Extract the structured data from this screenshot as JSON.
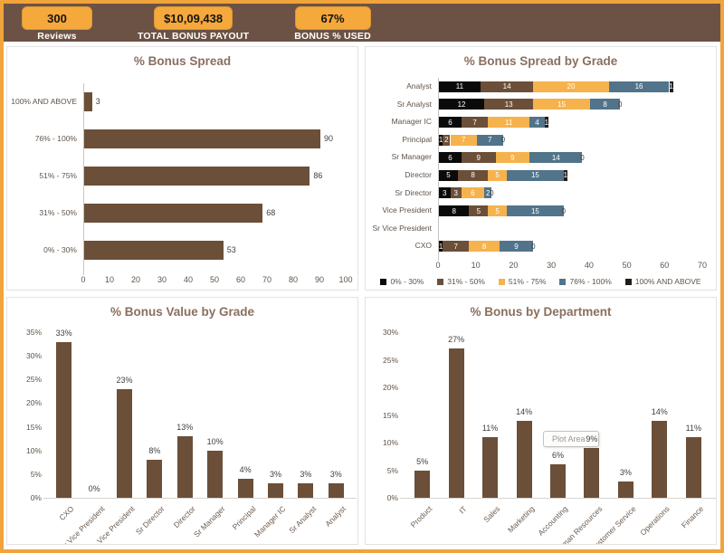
{
  "kpis": [
    {
      "value": "300",
      "label": "Reviews"
    },
    {
      "value": "$10,09,438",
      "label": "TOTAL BONUS PAYOUT"
    },
    {
      "value": "67%",
      "label": "BONUS % USED"
    }
  ],
  "colors": {
    "frame_orange": "#F1A33C",
    "band_brown": "#6C5244",
    "kpi_box_orange": "#F5A93C",
    "bar_brown": "#6B4F38",
    "series_colors": [
      "#0A0A0A",
      "#6B4F38",
      "#F6B24C",
      "#51748A",
      "#221C18"
    ],
    "title_text": "#8A6F5E",
    "axis_text": "#5F5349",
    "data_label_text": "#3F3F3F"
  },
  "chart_data": [
    {
      "type": "bar",
      "orientation": "horizontal",
      "title": "% Bonus Spread",
      "categories": [
        "100% AND ABOVE",
        "76% - 100%",
        "51% - 75%",
        "31% - 50%",
        "0% - 30%"
      ],
      "values": [
        3,
        90,
        86,
        68,
        53
      ],
      "xlabel": "",
      "ylabel": "",
      "xlim": [
        0,
        100
      ],
      "xtick_step": 10,
      "grid": false,
      "legend": false
    },
    {
      "type": "bar",
      "orientation": "horizontal",
      "stacked": true,
      "title": "% Bonus Spread by Grade",
      "categories": [
        "Analyst",
        "Sr Analyst",
        "Manager IC",
        "Principal",
        "Sr Manager",
        "Director",
        "Sr Director",
        "Vice President",
        "Sr Vice President",
        "CXO"
      ],
      "series": [
        {
          "name": "0% - 30%",
          "values": [
            11,
            12,
            6,
            1,
            6,
            5,
            3,
            8,
            null,
            1
          ]
        },
        {
          "name": "31% - 50%",
          "values": [
            14,
            13,
            7,
            2,
            9,
            8,
            3,
            5,
            null,
            7
          ]
        },
        {
          "name": "51% - 75%",
          "values": [
            20,
            15,
            11,
            7,
            9,
            5,
            6,
            5,
            null,
            8
          ]
        },
        {
          "name": "76% - 100%",
          "values": [
            16,
            8,
            4,
            7,
            14,
            15,
            2,
            15,
            null,
            9
          ]
        },
        {
          "name": "100% AND ABOVE",
          "values": [
            1,
            0,
            1,
            0,
            0,
            1,
            0,
            0,
            null,
            0
          ]
        }
      ],
      "xlabel": "",
      "ylabel": "",
      "xlim": [
        0,
        70
      ],
      "xtick_step": 10,
      "grid": false,
      "legend_position": "bottom"
    },
    {
      "type": "bar",
      "orientation": "vertical",
      "title": "% Bonus Value by Grade",
      "categories": [
        "CXO",
        "Sr Vice President",
        "Vice President",
        "Sr Director",
        "Director",
        "Sr Manager",
        "Principal",
        "Manager IC",
        "Sr Analyst",
        "Analyst"
      ],
      "values": [
        33,
        0,
        23,
        8,
        13,
        10,
        4,
        3,
        3,
        3
      ],
      "data_labels": [
        "33%",
        "0%",
        "23%",
        "8%",
        "13%",
        "10%",
        "4%",
        "3%",
        "3%",
        "3%"
      ],
      "xlabel": "",
      "ylabel": "",
      "ylim": [
        0,
        35
      ],
      "ytick_step": 5,
      "ytick_suffix": "%",
      "grid": false,
      "legend": false
    },
    {
      "type": "bar",
      "orientation": "vertical",
      "title": "% Bonus by Department",
      "categories": [
        "Product",
        "IT",
        "Sales",
        "Marketing",
        "Accounting",
        "Human Resources",
        "Customer Service",
        "Operations",
        "Finance"
      ],
      "values": [
        5,
        27,
        11,
        14,
        6,
        9,
        3,
        14,
        11
      ],
      "data_labels": [
        "5%",
        "27%",
        "11%",
        "14%",
        "6%",
        "9%",
        "3%",
        "14%",
        "11%"
      ],
      "xlabel": "",
      "ylabel": "",
      "ylim": [
        0,
        30
      ],
      "ytick_step": 5,
      "ytick_suffix": "%",
      "grid": false,
      "legend": false,
      "tooltip": {
        "text": "Plot Area",
        "over_category": "Human Resources"
      }
    }
  ]
}
